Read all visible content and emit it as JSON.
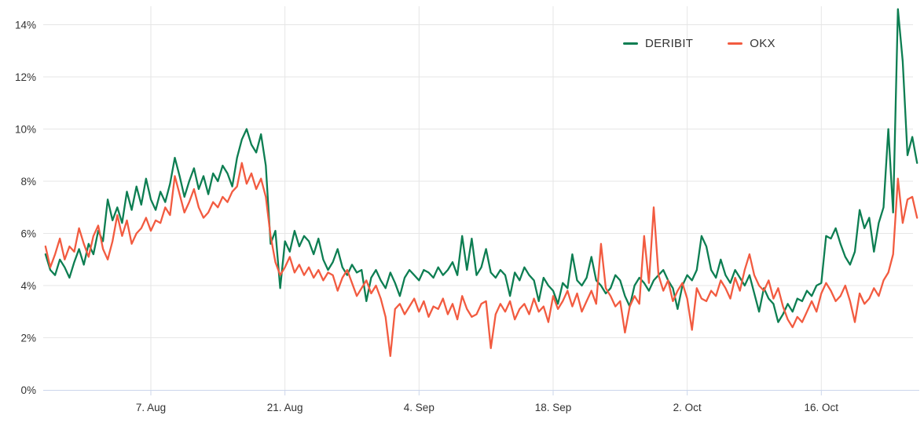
{
  "chart_data": {
    "type": "line",
    "title": "",
    "xlabel": "",
    "ylabel": "",
    "x_axis": {
      "tick_labels": [
        "7. Aug",
        "21. Aug",
        "4. Sep",
        "18. Sep",
        "2. Oct",
        "16. Oct"
      ],
      "tick_days": [
        11,
        25,
        39,
        53,
        67,
        81
      ],
      "note": "x encoded as days; day 11 = 7. Aug, samples every half day from chart left edge to right edge"
    },
    "y_axis": {
      "ticks": [
        0,
        2,
        4,
        6,
        8,
        10,
        12,
        14
      ],
      "tick_format": "{v}%",
      "ylim": [
        0,
        14.7
      ]
    },
    "grid": true,
    "legend_position": "top-right",
    "series": [
      {
        "name": "DERIBIT",
        "color": "#0d7e52",
        "start_day": 0,
        "day_step": 0.5,
        "values": [
          5.2,
          4.6,
          4.4,
          5.0,
          4.7,
          4.3,
          4.9,
          5.4,
          4.8,
          5.6,
          5.2,
          6.1,
          5.7,
          7.3,
          6.5,
          7.0,
          6.4,
          7.6,
          6.9,
          7.8,
          7.1,
          8.1,
          7.3,
          6.9,
          7.6,
          7.2,
          7.9,
          8.9,
          8.2,
          7.4,
          8.0,
          8.5,
          7.7,
          8.2,
          7.5,
          8.3,
          8.0,
          8.6,
          8.3,
          7.8,
          8.9,
          9.6,
          10.0,
          9.4,
          9.1,
          9.8,
          8.6,
          5.6,
          6.1,
          3.9,
          5.7,
          5.3,
          6.1,
          5.5,
          5.9,
          5.7,
          5.2,
          5.8,
          5.0,
          4.6,
          4.9,
          5.4,
          4.7,
          4.4,
          4.8,
          4.5,
          4.6,
          3.4,
          4.3,
          4.6,
          4.2,
          3.9,
          4.5,
          4.1,
          3.6,
          4.3,
          4.6,
          4.4,
          4.2,
          4.6,
          4.5,
          4.3,
          4.7,
          4.4,
          4.6,
          4.9,
          4.4,
          5.9,
          4.6,
          5.8,
          4.4,
          4.7,
          5.4,
          4.5,
          4.3,
          4.6,
          4.4,
          3.6,
          4.5,
          4.2,
          4.7,
          4.4,
          4.2,
          3.4,
          4.3,
          4.0,
          3.8,
          3.3,
          4.1,
          3.9,
          5.2,
          4.2,
          4.0,
          4.3,
          5.1,
          4.2,
          4.0,
          3.7,
          3.9,
          4.4,
          4.2,
          3.6,
          3.2,
          4.0,
          4.3,
          4.1,
          3.8,
          4.2,
          4.4,
          4.6,
          4.2,
          3.9,
          3.1,
          4.0,
          4.4,
          4.2,
          4.6,
          5.9,
          5.5,
          4.6,
          4.3,
          5.0,
          4.4,
          4.1,
          4.6,
          4.3,
          4.0,
          4.4,
          3.7,
          3.0,
          3.9,
          3.5,
          3.3,
          2.6,
          2.9,
          3.3,
          3.0,
          3.5,
          3.4,
          3.8,
          3.6,
          4.0,
          4.1,
          5.9,
          5.8,
          6.2,
          5.6,
          5.1,
          4.8,
          5.3,
          6.9,
          6.2,
          6.6,
          5.3,
          6.4,
          7.0,
          10.0,
          6.8,
          14.6,
          12.6,
          9.0,
          9.7,
          8.7
        ]
      },
      {
        "name": "OKX",
        "color": "#f25b40",
        "start_day": 0,
        "day_step": 0.5,
        "values": [
          5.5,
          4.7,
          5.2,
          5.8,
          5.0,
          5.5,
          5.3,
          6.2,
          5.6,
          5.1,
          5.9,
          6.3,
          5.4,
          5.0,
          5.7,
          6.7,
          5.9,
          6.5,
          5.6,
          6.0,
          6.2,
          6.6,
          6.1,
          6.5,
          6.4,
          7.0,
          6.7,
          8.2,
          7.5,
          6.8,
          7.2,
          7.7,
          7.0,
          6.6,
          6.8,
          7.2,
          7.0,
          7.4,
          7.2,
          7.6,
          7.8,
          8.7,
          7.9,
          8.3,
          7.7,
          8.1,
          7.4,
          5.9,
          4.9,
          4.4,
          4.7,
          5.1,
          4.5,
          4.8,
          4.4,
          4.7,
          4.3,
          4.6,
          4.2,
          4.5,
          4.4,
          3.8,
          4.3,
          4.6,
          4.1,
          3.6,
          3.9,
          4.2,
          3.7,
          4.0,
          3.5,
          2.8,
          1.3,
          3.1,
          3.3,
          2.9,
          3.2,
          3.5,
          3.0,
          3.4,
          2.8,
          3.2,
          3.1,
          3.5,
          2.9,
          3.3,
          2.7,
          3.6,
          3.1,
          2.8,
          2.9,
          3.3,
          3.4,
          1.6,
          2.9,
          3.3,
          3.0,
          3.4,
          2.7,
          3.1,
          3.3,
          2.9,
          3.5,
          3.0,
          3.2,
          2.6,
          3.6,
          3.1,
          3.4,
          3.8,
          3.2,
          3.7,
          3.0,
          3.4,
          3.8,
          3.3,
          5.6,
          3.9,
          3.6,
          3.2,
          3.4,
          2.2,
          3.2,
          3.6,
          3.3,
          5.9,
          4.1,
          7.0,
          4.4,
          3.8,
          4.2,
          3.4,
          3.8,
          4.1,
          3.5,
          2.3,
          3.9,
          3.5,
          3.4,
          3.8,
          3.6,
          4.2,
          3.9,
          3.5,
          4.3,
          3.8,
          4.6,
          5.2,
          4.4,
          4.0,
          3.8,
          4.2,
          3.5,
          3.9,
          3.2,
          2.7,
          2.4,
          2.8,
          2.6,
          3.0,
          3.4,
          3.0,
          3.7,
          4.1,
          3.8,
          3.4,
          3.6,
          4.0,
          3.4,
          2.6,
          3.7,
          3.3,
          3.5,
          3.9,
          3.6,
          4.2,
          4.5,
          5.2,
          8.1,
          6.4,
          7.3,
          7.4,
          6.6
        ]
      }
    ]
  },
  "legend": {
    "items": [
      {
        "label": "DERIBIT",
        "color": "#0d7e52"
      },
      {
        "label": "OKX",
        "color": "#f25b40"
      }
    ]
  },
  "colors": {
    "grid_line": "#e6e6e6",
    "axis_line": "#ccd6eb",
    "tick_label": "#333333",
    "background": "#ffffff"
  }
}
